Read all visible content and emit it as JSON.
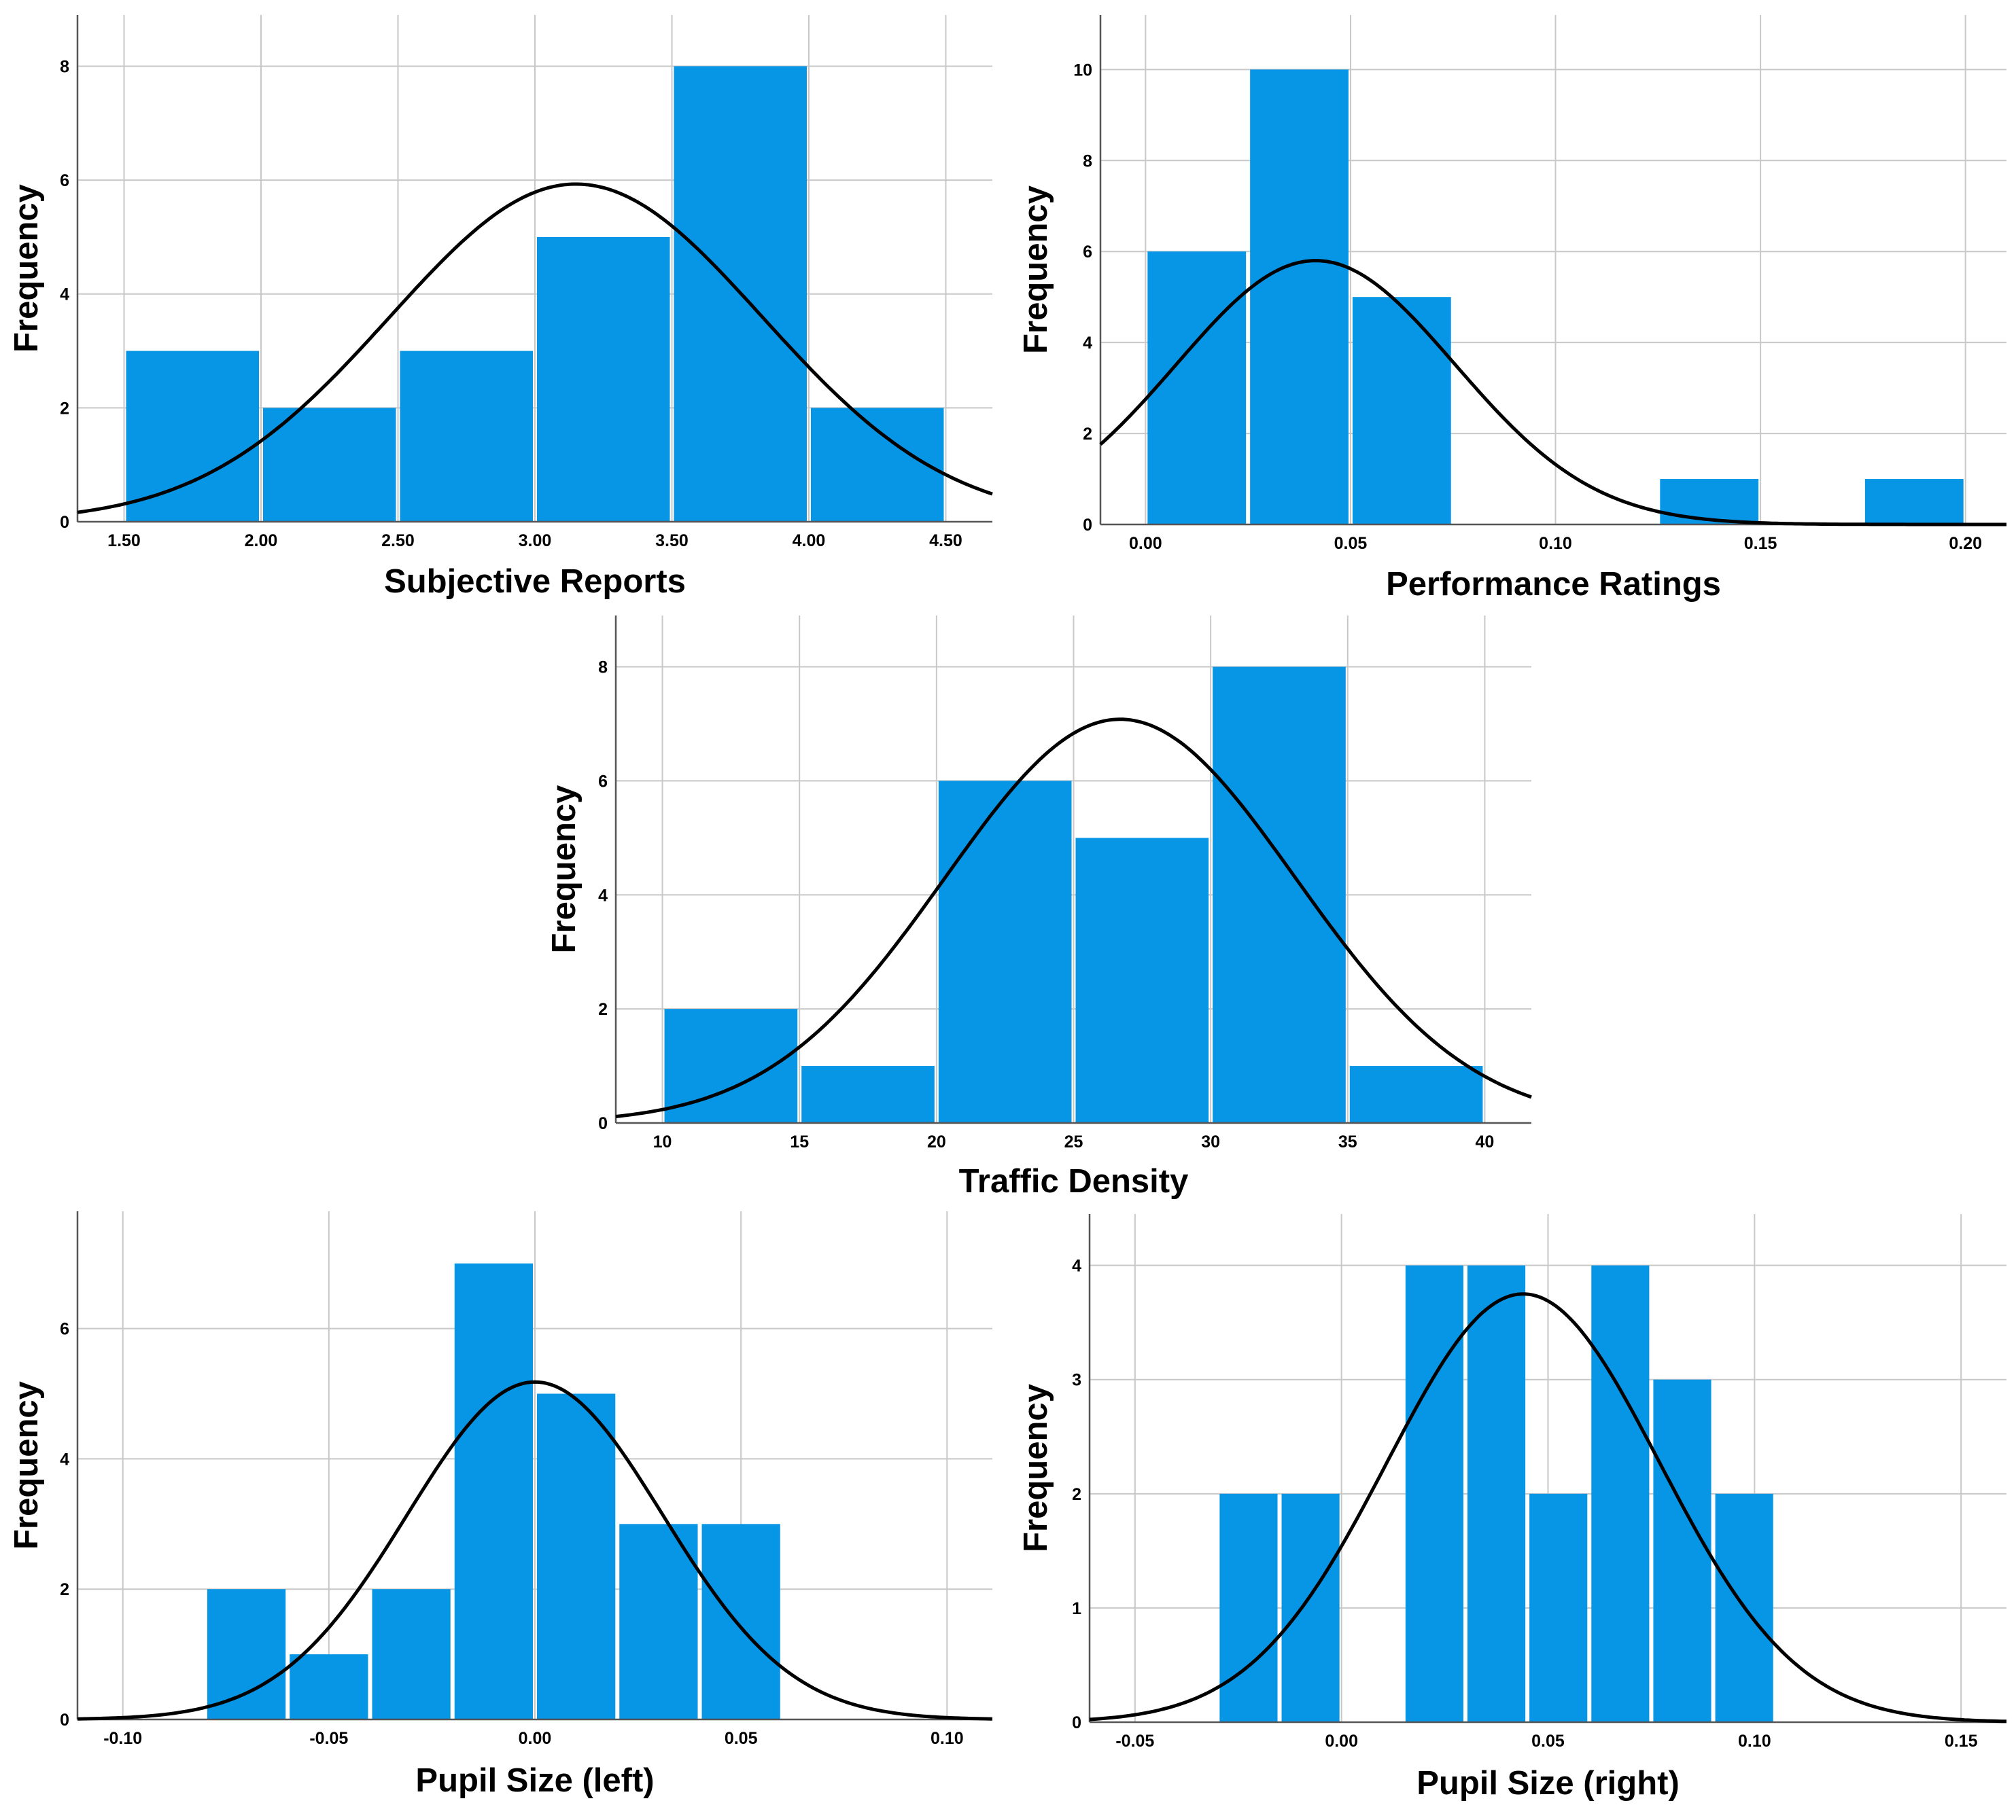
{
  "chart_data": [
    {
      "type": "bar",
      "title": "",
      "xlabel": "Subjective Reports",
      "ylabel": "Frequency",
      "bin_edges": [
        1.5,
        2.0,
        2.5,
        3.0,
        3.5,
        4.0,
        4.5
      ],
      "values": [
        3,
        2,
        3,
        5,
        8,
        2
      ],
      "xlim": [
        1.33,
        4.67
      ],
      "ylim": [
        0,
        8.9
      ],
      "xticks": [
        1.5,
        2.0,
        2.5,
        3.0,
        3.5,
        4.0,
        4.5
      ],
      "xtick_labels": [
        "1.50",
        "2.00",
        "2.50",
        "3.00",
        "3.50",
        "4.00",
        "4.50"
      ],
      "yticks": [
        0,
        2,
        4,
        6,
        8
      ],
      "ytick_labels": [
        "0",
        "2",
        "4",
        "6",
        "8"
      ],
      "normal_curve": {
        "mean": 3.15,
        "sd": 0.68,
        "peak": 5.93
      },
      "bar_color": "#0795E6",
      "grid": true
    },
    {
      "type": "bar",
      "title": "",
      "xlabel": "Performance Ratings",
      "ylabel": "Frequency",
      "bin_edges": [
        0.0,
        0.025,
        0.05,
        0.075,
        0.1,
        0.125,
        0.15,
        0.175,
        0.2
      ],
      "values": [
        6,
        10,
        5,
        0,
        0,
        1,
        0,
        1
      ],
      "xlim": [
        -0.011,
        0.21
      ],
      "ylim": [
        0,
        11.2
      ],
      "xticks": [
        0.0,
        0.05,
        0.1,
        0.15,
        0.2
      ],
      "xtick_labels": [
        "0.00",
        "0.05",
        "0.10",
        "0.15",
        "0.20"
      ],
      "yticks": [
        0,
        2,
        4,
        6,
        8,
        10
      ],
      "ytick_labels": [
        "0",
        "2",
        "4",
        "6",
        "8",
        "10"
      ],
      "normal_curve": {
        "mean": 0.0415,
        "sd": 0.034,
        "peak": 5.8
      },
      "bar_color": "#0795E6",
      "grid": true
    },
    {
      "type": "bar",
      "title": "",
      "xlabel": "Traffic Density",
      "ylabel": "Frequency",
      "bin_edges": [
        10,
        15,
        20,
        25,
        30,
        35,
        40
      ],
      "values": [
        2,
        1,
        6,
        5,
        8,
        1
      ],
      "xlim": [
        8.3,
        41.7
      ],
      "ylim": [
        0,
        8.9
      ],
      "xticks": [
        10,
        15,
        20,
        25,
        30,
        35,
        40
      ],
      "xtick_labels": [
        "10",
        "15",
        "20",
        "25",
        "30",
        "35",
        "40"
      ],
      "yticks": [
        0,
        2,
        4,
        6,
        8
      ],
      "ytick_labels": [
        "0",
        "2",
        "4",
        "6",
        "8"
      ],
      "normal_curve": {
        "mean": 26.7,
        "sd": 6.4,
        "peak": 7.08
      },
      "bar_color": "#0795E6",
      "grid": true
    },
    {
      "type": "bar",
      "title": "",
      "xlabel": "Pupil Size (left)",
      "ylabel": "Frequency",
      "bin_edges": [
        -0.08,
        -0.06,
        -0.04,
        -0.02,
        0.0,
        0.02,
        0.04,
        0.06
      ],
      "values": [
        2,
        1,
        2,
        7,
        5,
        3,
        3
      ],
      "xlim": [
        -0.111,
        0.111
      ],
      "ylim": [
        0,
        7.8
      ],
      "xticks": [
        -0.1,
        -0.05,
        0.0,
        0.05,
        0.1
      ],
      "xtick_labels": [
        "-0.10",
        "-0.05",
        "0.00",
        "0.05",
        "0.10"
      ],
      "yticks": [
        0,
        2,
        4,
        6
      ],
      "ytick_labels": [
        "0",
        "2",
        "4",
        "6"
      ],
      "normal_curve": {
        "mean": 0.0,
        "sd": 0.031,
        "peak": 5.18
      },
      "bar_color": "#0795E6",
      "grid": true
    },
    {
      "type": "bar",
      "title": "",
      "xlabel": "Pupil Size (right)",
      "ylabel": "Frequency",
      "bin_edges": [
        -0.03,
        -0.015,
        0.0,
        0.015,
        0.03,
        0.045,
        0.06,
        0.075,
        0.09,
        0.105
      ],
      "values": [
        2,
        2,
        0,
        4,
        4,
        2,
        4,
        3,
        2
      ],
      "xlim": [
        -0.061,
        0.161
      ],
      "ylim": [
        0,
        4.45
      ],
      "xticks": [
        -0.05,
        0.0,
        0.05,
        0.1,
        0.15
      ],
      "xtick_labels": [
        "-0.05",
        "0.00",
        "0.05",
        "0.10",
        "0.15"
      ],
      "yticks": [
        0,
        1,
        2,
        3,
        4
      ],
      "ytick_labels": [
        "0",
        "1",
        "2",
        "3",
        "4"
      ],
      "normal_curve": {
        "mean": 0.044,
        "sd": 0.033,
        "peak": 3.75
      },
      "bar_color": "#0795E6",
      "grid": true
    }
  ]
}
